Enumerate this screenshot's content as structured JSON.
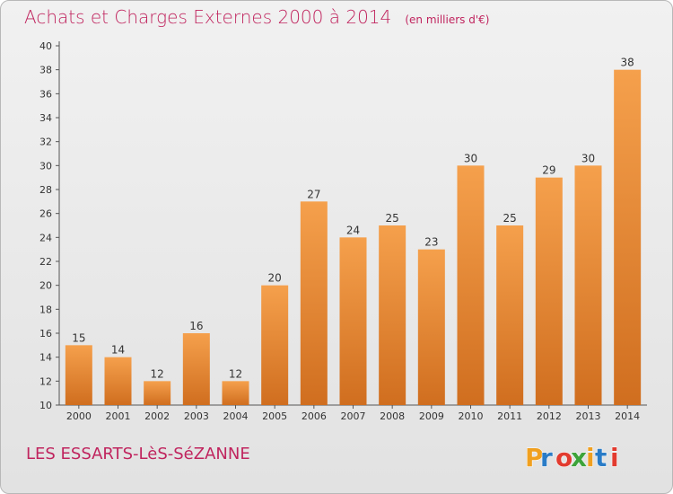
{
  "title": "Achats et Charges Externes 2000 à 2014",
  "unit_note": "(en milliers d'€)",
  "commune": "LES ESSARTS-LèS-SéZANNE",
  "logo_text": "Proxiti",
  "colors": {
    "title": "#c0245e",
    "bar_light": "#f5a04c",
    "bar_dark": "#d06e1f",
    "logo": [
      "#f0a020",
      "#2a7cc7",
      "#e23b2f",
      "#3da33a",
      "#f0a020",
      "#2a7cc7",
      "#e23b2f"
    ]
  },
  "chart_data": {
    "type": "bar",
    "title": "Achats et Charges Externes 2000 à 2014",
    "categories": [
      "2000",
      "2001",
      "2002",
      "2003",
      "2004",
      "2005",
      "2006",
      "2007",
      "2008",
      "2009",
      "2010",
      "2011",
      "2012",
      "2013",
      "2014"
    ],
    "values": [
      15,
      14,
      12,
      16,
      12,
      20,
      27,
      24,
      25,
      23,
      30,
      25,
      29,
      30,
      38
    ],
    "ylim": [
      10,
      40
    ],
    "yticks": [
      10,
      12,
      14,
      16,
      18,
      20,
      22,
      24,
      26,
      28,
      30,
      32,
      34,
      36,
      38,
      40
    ],
    "grid": false,
    "data_labels": true
  }
}
